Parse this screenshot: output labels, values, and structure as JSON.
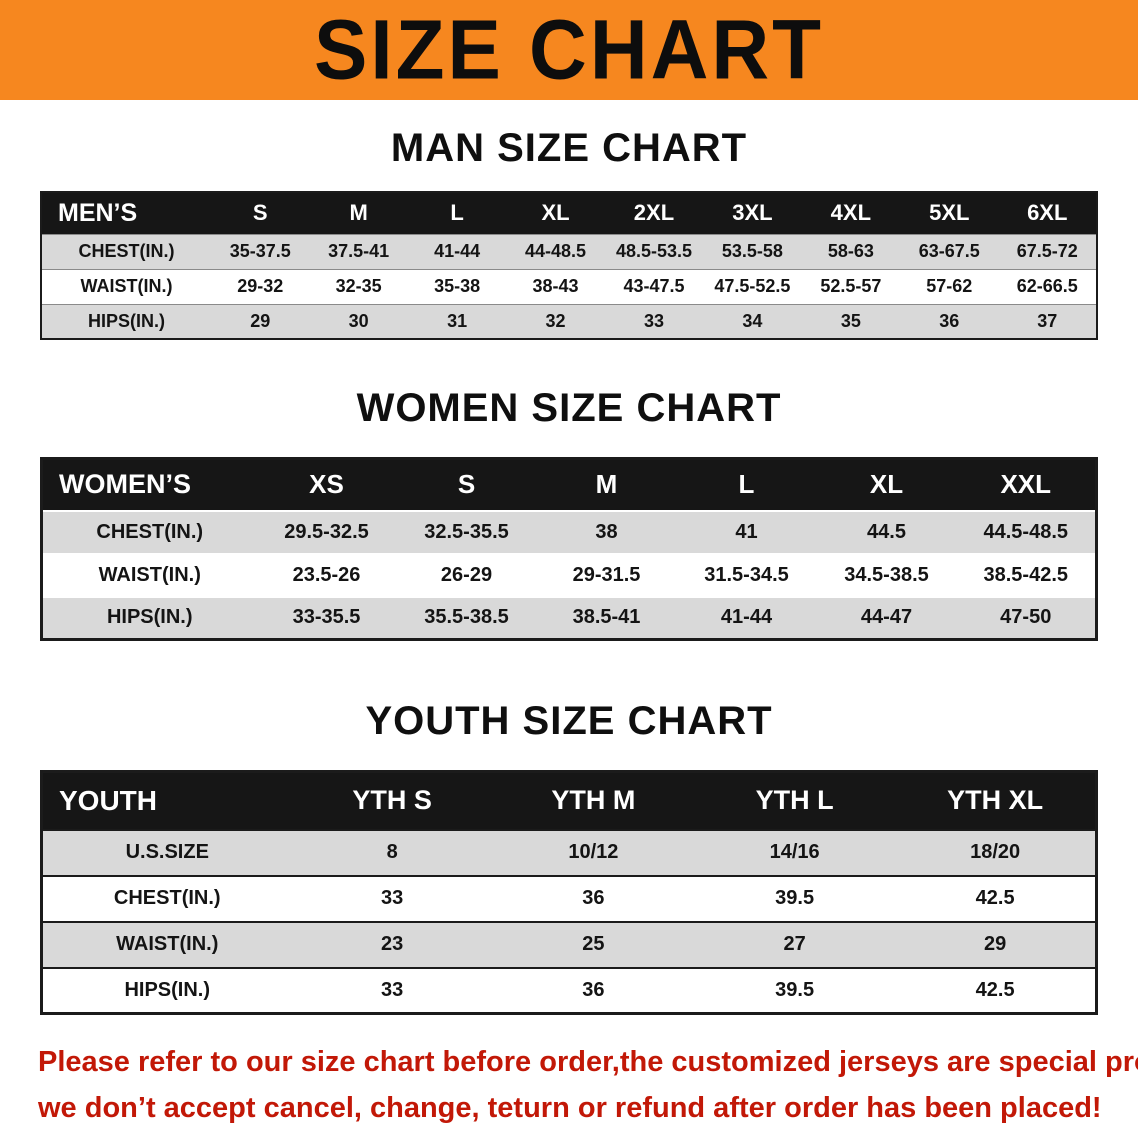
{
  "banner": {
    "title": "SIZE CHART"
  },
  "colors": {
    "banner-bg": "#F6871F",
    "header-bg": "#161616",
    "row-alt": "#D9D9D9",
    "accent-red": "#C21807"
  },
  "sections": {
    "men": {
      "heading": "MAN SIZE CHART",
      "table": {
        "header": [
          "MEN’S",
          "S",
          "M",
          "L",
          "XL",
          "2XL",
          "3XL",
          "4XL",
          "5XL",
          "6XL"
        ],
        "rows": [
          {
            "label": "CHEST(IN.)",
            "values": [
              "35-37.5",
              "37.5-41",
              "41-44",
              "44-48.5",
              "48.5-53.5",
              "53.5-58",
              "58-63",
              "63-67.5",
              "67.5-72"
            ]
          },
          {
            "label": "WAIST(IN.)",
            "values": [
              "29-32",
              "32-35",
              "35-38",
              "38-43",
              "43-47.5",
              "47.5-52.5",
              "52.5-57",
              "57-62",
              "62-66.5"
            ]
          },
          {
            "label": "HIPS(IN.)",
            "values": [
              "29",
              "30",
              "31",
              "32",
              "33",
              "34",
              "35",
              "36",
              "37"
            ]
          }
        ]
      }
    },
    "women": {
      "heading": "WOMEN SIZE CHART",
      "table": {
        "header": [
          "WOMEN’S",
          "XS",
          "S",
          "M",
          "L",
          "XL",
          "XXL"
        ],
        "rows": [
          {
            "label": "CHEST(IN.)",
            "values": [
              "29.5-32.5",
              "32.5-35.5",
              "38",
              "41",
              "44.5",
              "44.5-48.5"
            ]
          },
          {
            "label": "WAIST(IN.)",
            "values": [
              "23.5-26",
              "26-29",
              "29-31.5",
              "31.5-34.5",
              "34.5-38.5",
              "38.5-42.5"
            ]
          },
          {
            "label": "HIPS(IN.)",
            "values": [
              "33-35.5",
              "35.5-38.5",
              "38.5-41",
              "41-44",
              "44-47",
              "47-50"
            ]
          }
        ]
      }
    },
    "youth": {
      "heading": "YOUTH SIZE CHART",
      "table": {
        "header": [
          "YOUTH",
          "YTH S",
          "YTH M",
          "YTH L",
          "YTH XL"
        ],
        "rows": [
          {
            "label": "U.S.SIZE",
            "values": [
              "8",
              "10/12",
              "14/16",
              "18/20"
            ]
          },
          {
            "label": "CHEST(IN.)",
            "values": [
              "33",
              "36",
              "39.5",
              "42.5"
            ]
          },
          {
            "label": "WAIST(IN.)",
            "values": [
              "23",
              "25",
              "27",
              "29"
            ]
          },
          {
            "label": "HIPS(IN.)",
            "values": [
              "33",
              "36",
              "39.5",
              "42.5"
            ]
          }
        ]
      }
    }
  },
  "disclaimer": {
    "line1": "Please refer to our size chart before order,the customized jerseys are special products,",
    "line2": "we don’t accept cancel, change, teturn or refund after order has been placed!"
  }
}
